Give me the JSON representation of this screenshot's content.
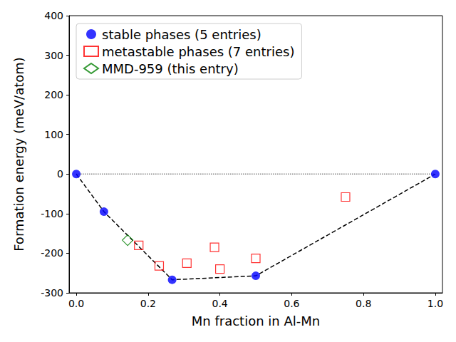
{
  "chart_data": {
    "type": "scatter",
    "x_label": "Mn fraction in Al-Mn",
    "y_label": "Formation energy (meV/atom)",
    "xlim": [
      -0.02,
      1.02
    ],
    "ylim": [
      -300,
      400
    ],
    "xticks": [
      {
        "value": 0,
        "label": "0.0"
      },
      {
        "value": 0.2,
        "label": "0.2"
      },
      {
        "value": 0.4,
        "label": "0.4"
      },
      {
        "value": 0.6,
        "label": "0.6"
      },
      {
        "value": 0.8,
        "label": "0.8"
      },
      {
        "value": 1,
        "label": "1.0"
      }
    ],
    "yticks": [
      -300,
      -200,
      -100,
      0,
      100,
      200,
      300,
      400
    ],
    "grid": false,
    "legend": "upper left",
    "series": [
      {
        "type": "line",
        "line_style": "dotted",
        "color": "#808080",
        "x": [
          0,
          1
        ],
        "values": [
          0,
          0
        ]
      },
      {
        "type": "line",
        "line_style": "dashed",
        "color": "#000000",
        "x": [
          0,
          0.077,
          0.267,
          0.5,
          1
        ],
        "values": [
          0,
          -95,
          -267,
          -257,
          0
        ]
      },
      {
        "name": "stable phases (5 entries)",
        "type": "scatter",
        "marker": "circle",
        "color": "#0000ff",
        "x": [
          0,
          0.077,
          0.267,
          0.5,
          1
        ],
        "values": [
          0,
          -95,
          -267,
          -257,
          0
        ]
      },
      {
        "name": "metastable phases (7 entries)",
        "type": "scatter",
        "marker": "square_open",
        "color": "#ff0000",
        "x": [
          0.174,
          0.231,
          0.308,
          0.385,
          0.4,
          0.5,
          0.75
        ],
        "values": [
          -180,
          -232,
          -225,
          -185,
          -240,
          -213,
          -58
        ]
      },
      {
        "name": "MMD-959 (this entry)",
        "type": "scatter",
        "marker": "diamond_open",
        "color": "#008000",
        "x": [
          0.143
        ],
        "values": [
          -167
        ]
      }
    ]
  }
}
